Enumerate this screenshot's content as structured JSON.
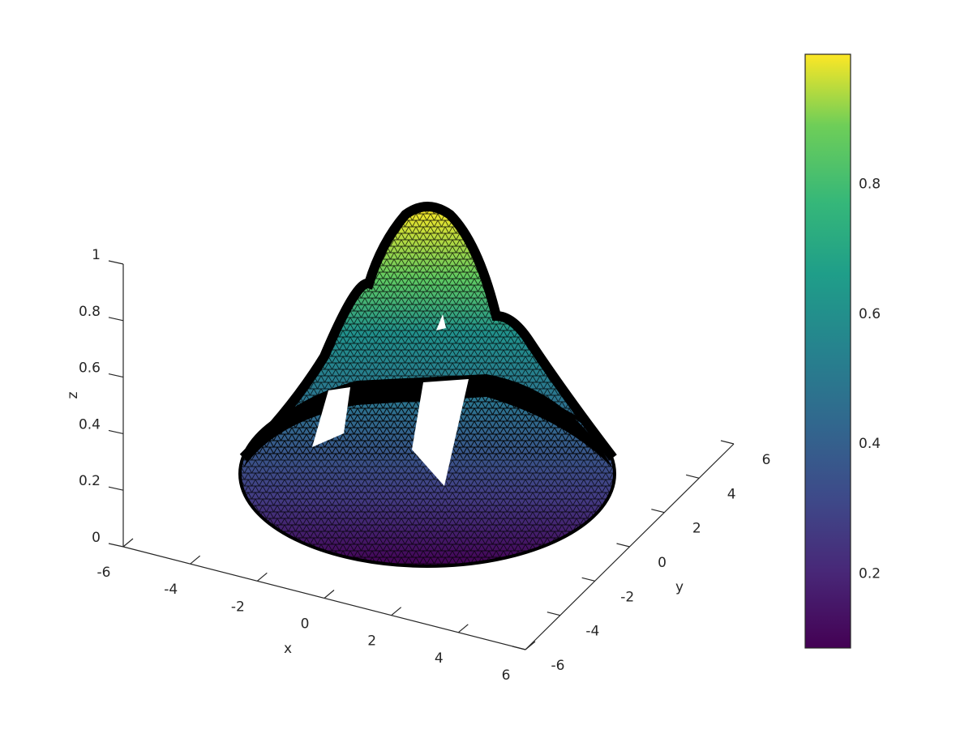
{
  "chart_data": {
    "type": "surface",
    "xlabel": "x",
    "ylabel": "y",
    "zlabel": "z",
    "xlim": [
      -6,
      6
    ],
    "ylim": [
      -6,
      6
    ],
    "zlim": [
      0,
      1
    ],
    "xticks": [
      -6,
      -4,
      -2,
      0,
      2,
      4,
      6
    ],
    "yticks": [
      -6,
      -4,
      -2,
      0,
      2,
      4,
      6
    ],
    "zticks": [
      0,
      0.2,
      0.4,
      0.6,
      0.8,
      1
    ],
    "colorbar": {
      "clim": [
        0.086,
        1.0
      ],
      "ticks": [
        0.2,
        0.4,
        0.6,
        0.8
      ],
      "colormap": "viridis"
    }
  }
}
